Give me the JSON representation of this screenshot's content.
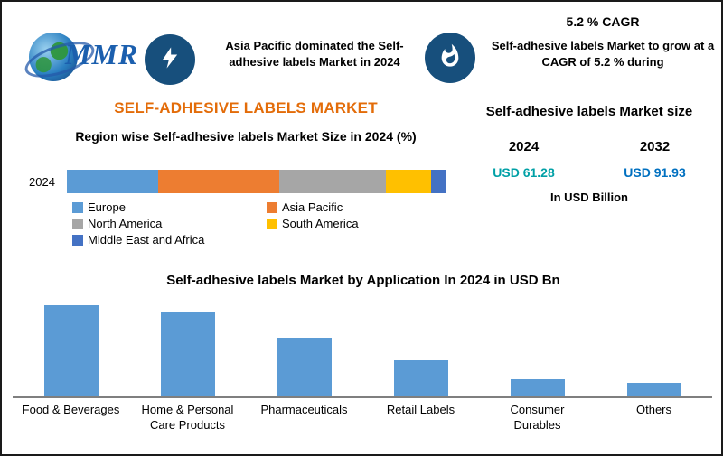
{
  "header": {
    "logo_text": "MMR",
    "dominance_note": "Asia Pacific dominated the Self-adhesive labels Market in 2024",
    "cagr_title": "5.2 % CAGR",
    "cagr_text": "Self-adhesive labels Market to grow at a CAGR of 5.2 % during"
  },
  "market": {
    "title": "SELF-ADHESIVE LABELS MARKET",
    "size_title": "Self-adhesive labels Market size",
    "year1": "2024",
    "year2": "2032",
    "value1": "USD 61.28",
    "value2": "USD 91.93",
    "value1_color": "#00a0a6",
    "value2_color": "#0070c0",
    "unit": "In USD Billion"
  },
  "colors": {
    "accent_orange": "#e36c09",
    "badge_blue": "#174f7c",
    "bar_blue": "#5b9bd5"
  },
  "chart_data": [
    {
      "type": "bar",
      "subtype": "stacked-horizontal",
      "title": "Region wise Self-adhesive labels Market Size in 2024 (%)",
      "category": "2024",
      "unit": "%",
      "series": [
        {
          "name": "Europe",
          "value": 24,
          "color": "#5b9bd5"
        },
        {
          "name": "Asia Pacific",
          "value": 32,
          "color": "#ed7d31"
        },
        {
          "name": "North America",
          "value": 28,
          "color": "#a6a6a6"
        },
        {
          "name": "South America",
          "value": 12,
          "color": "#ffc000"
        },
        {
          "name": "Middle East and Africa",
          "value": 4,
          "color": "#4472c4"
        }
      ],
      "legend_position": "bottom-left"
    },
    {
      "type": "bar",
      "title": "Self-adhesive labels Market by Application In 2024 in USD Bn",
      "categories": [
        "Food & Beverages",
        "Home & Personal Care Products",
        "Pharmaceuticals",
        "Retail Labels",
        "Consumer Durables",
        "Others"
      ],
      "values": [
        18.6,
        17.0,
        11.9,
        7.3,
        3.4,
        2.7
      ],
      "bar_color": "#5b9bd5",
      "ylim": [
        0,
        20
      ],
      "xlabel": "",
      "ylabel": "",
      "grid": false,
      "legend": false
    }
  ]
}
